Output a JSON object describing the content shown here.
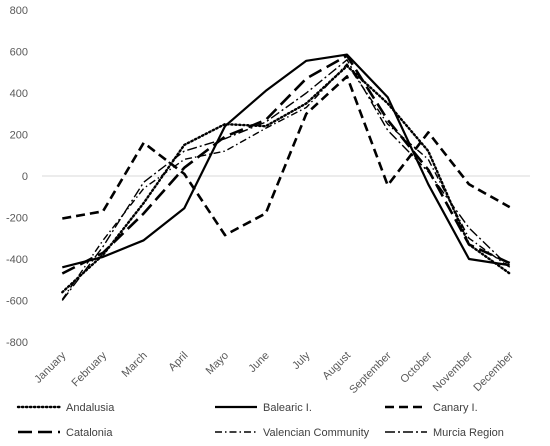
{
  "chart_data": {
    "type": "line",
    "title": "",
    "xlabel": "",
    "ylabel": "",
    "ylim": [
      -800,
      800
    ],
    "yticks": [
      800,
      600,
      400,
      200,
      0,
      -200,
      -400,
      -600,
      -800
    ],
    "grid": false,
    "legend_position": "bottom",
    "categories": [
      "January",
      "February",
      "March",
      "April",
      "Mayo",
      "June",
      "July",
      "August",
      "September",
      "October",
      "November",
      "December"
    ],
    "series": [
      {
        "name": "Andalusia",
        "style": "dotted",
        "color": "#000000",
        "values": [
          -560,
          -380,
          -130,
          150,
          250,
          240,
          350,
          530,
          350,
          120,
          -330,
          -470
        ]
      },
      {
        "name": "Balearic I.",
        "style": "solid",
        "color": "#000000",
        "values": [
          -440,
          -390,
          -310,
          -155,
          240,
          410,
          555,
          585,
          380,
          -40,
          -400,
          -430
        ]
      },
      {
        "name": "Canary I.",
        "style": "dashed",
        "color": "#000000",
        "values": [
          -205,
          -170,
          160,
          10,
          -285,
          -180,
          300,
          480,
          -45,
          210,
          -40,
          -150
        ]
      },
      {
        "name": "Catalonia",
        "style": "longdash",
        "color": "#000000",
        "values": [
          -470,
          -370,
          -180,
          40,
          190,
          270,
          470,
          580,
          270,
          30,
          -330,
          -420
        ]
      },
      {
        "name": "Valencian Community",
        "style": "dashdot",
        "color": "#000000",
        "values": [
          -595,
          -310,
          -60,
          80,
          120,
          230,
          330,
          540,
          250,
          80,
          -300,
          -440
        ]
      },
      {
        "name": "Murcia Region",
        "style": "dashdotlong",
        "color": "#000000",
        "values": [
          -600,
          -340,
          -30,
          120,
          180,
          260,
          400,
          560,
          220,
          20,
          -250,
          -440
        ]
      }
    ]
  }
}
